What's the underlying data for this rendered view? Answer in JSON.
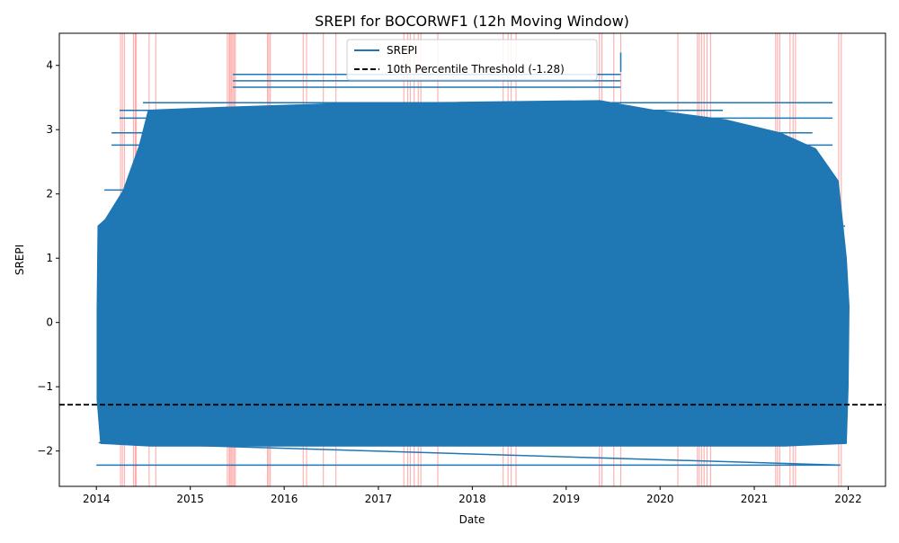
{
  "chart_data": {
    "type": "line",
    "title": "SREPI for BOCORWF1 (12h Moving Window)",
    "xlabel": "Date",
    "ylabel": "SREPI",
    "xlim": [
      "2013-08-10",
      "2022-05-26"
    ],
    "ylim": [
      -2.55,
      4.5
    ],
    "x_ticks": [
      "2014",
      "2015",
      "2016",
      "2017",
      "2018",
      "2019",
      "2020",
      "2021",
      "2022"
    ],
    "x_tick_dates": [
      "2014-01-01",
      "2015-01-01",
      "2016-01-01",
      "2017-01-01",
      "2018-01-01",
      "2019-01-01",
      "2020-01-01",
      "2021-01-01",
      "2022-01-01"
    ],
    "y_ticks": [
      -2,
      -1,
      0,
      1,
      2,
      3,
      4
    ],
    "y_tick_labels": [
      "−2",
      "−1",
      "0",
      "1",
      "2",
      "3",
      "4"
    ],
    "grid": false,
    "legend": {
      "position": "upper center",
      "entries": [
        "SREPI",
        "10th Percentile Threshold (-1.28)"
      ]
    },
    "threshold": {
      "name": "10th Percentile Threshold (-1.28)",
      "value": -1.28,
      "color": "#000000",
      "style": "dashed"
    },
    "series": [
      {
        "name": "SREPI",
        "color": "#1f77b4",
        "x_range": [
          "2014-01-01",
          "2021-12-31"
        ],
        "value_range": [
          -2.22,
          4.2
        ],
        "note": "dense overlapping trace; horizontal level lines at start/end dates",
        "level_lines": [
          {
            "y": 3.86,
            "x0": "2015-06-15",
            "x1": "2019-08-01"
          },
          {
            "y": 3.76,
            "x0": "2015-06-15",
            "x1": "2019-08-01"
          },
          {
            "y": 3.66,
            "x0": "2015-06-15",
            "x1": "2019-08-01"
          },
          {
            "y": 3.42,
            "x0": "2014-07-01",
            "x1": "2021-11-01"
          },
          {
            "y": 3.3,
            "x0": "2014-04-01",
            "x1": "2020-09-01"
          },
          {
            "y": 3.18,
            "x0": "2014-04-01",
            "x1": "2021-11-01"
          },
          {
            "y": 2.95,
            "x0": "2014-03-01",
            "x1": "2021-08-15"
          },
          {
            "y": 2.76,
            "x0": "2014-03-01",
            "x1": "2021-11-01"
          },
          {
            "y": 2.06,
            "x0": "2014-02-01",
            "x1": "2021-11-15"
          },
          {
            "y": 1.5,
            "x0": "2014-01-10",
            "x1": "2021-12-20"
          },
          {
            "y": -1.5,
            "x0": "2014-01-10",
            "x1": "2021-12-20"
          },
          {
            "y": -1.87,
            "x0": "2014-01-20",
            "x1": "2021-12-10"
          },
          {
            "y": -2.22,
            "x0": "2014-01-01",
            "x1": "2021-12-01"
          }
        ]
      }
    ],
    "events": {
      "color": "#ff0000",
      "dates": [
        "2014-04-05",
        "2014-04-12",
        "2014-04-20",
        "2014-05-25",
        "2014-06-01",
        "2014-06-05",
        "2014-07-25",
        "2014-08-20",
        "2015-05-25",
        "2015-06-01",
        "2015-06-05",
        "2015-06-10",
        "2015-06-15",
        "2015-06-20",
        "2015-06-25",
        "2015-10-28",
        "2015-11-02",
        "2015-11-08",
        "2016-03-15",
        "2016-03-28",
        "2016-06-01",
        "2016-07-20",
        "2017-04-10",
        "2017-04-25",
        "2017-05-05",
        "2017-05-20",
        "2017-06-05",
        "2017-06-15",
        "2017-08-20",
        "2018-05-01",
        "2018-05-20",
        "2018-06-01",
        "2018-06-20",
        "2019-05-10",
        "2019-05-20",
        "2019-07-05",
        "2019-08-01",
        "2020-03-10",
        "2020-05-25",
        "2020-06-01",
        "2020-06-10",
        "2020-06-20",
        "2020-07-01",
        "2020-07-15",
        "2021-03-25",
        "2021-04-01",
        "2021-04-10",
        "2021-05-20",
        "2021-06-01",
        "2021-06-10",
        "2021-11-25",
        "2021-12-05"
      ]
    }
  }
}
